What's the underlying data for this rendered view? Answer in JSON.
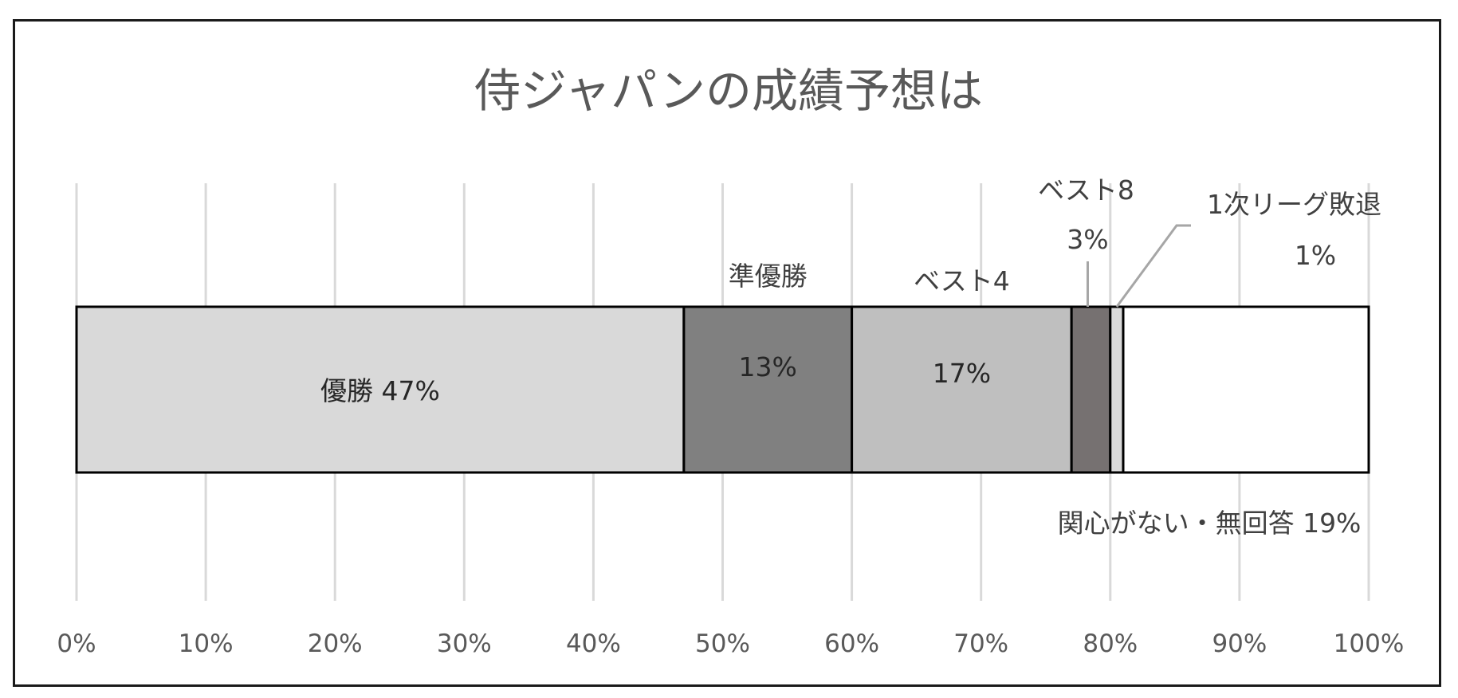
{
  "chart_data": {
    "type": "bar",
    "orientation": "horizontal-stacked-100",
    "title": "侍ジャパンの成績予想は",
    "xlim": [
      0,
      100
    ],
    "x_ticks": [
      "0%",
      "10%",
      "20%",
      "30%",
      "40%",
      "50%",
      "60%",
      "70%",
      "80%",
      "90%",
      "100%"
    ],
    "grid": true,
    "legend": "none",
    "series": [
      {
        "name": "優勝",
        "value": 47,
        "color": "#d9d9d9",
        "label_name": "優勝",
        "label_value": "47%"
      },
      {
        "name": "準優勝",
        "value": 13,
        "color": "#808080",
        "label_name": "準優勝",
        "label_value": "13%"
      },
      {
        "name": "ベスト4",
        "value": 17,
        "color": "#bfbfbf",
        "label_name": "ベスト4",
        "label_value": "17%"
      },
      {
        "name": "ベスト8",
        "value": 3,
        "color": "#767171",
        "label_name": "ベスト8",
        "label_value": "3%"
      },
      {
        "name": "1次リーグ敗退",
        "value": 1,
        "color": "#d9d9d9",
        "label_name": "1次リーグ敗退",
        "label_value": "1%"
      },
      {
        "name": "関心がない・無回答",
        "value": 19,
        "color": "#ffffff",
        "label_name": "関心がない・無回答",
        "label_value": "19%"
      }
    ]
  }
}
